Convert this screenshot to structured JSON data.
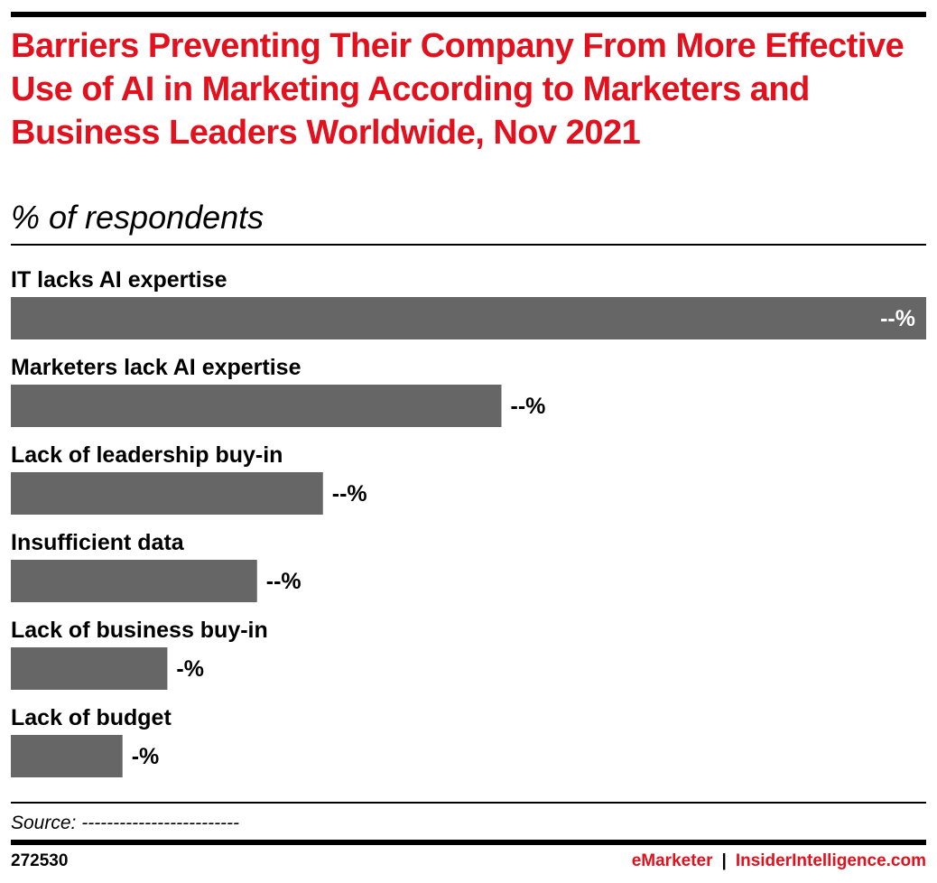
{
  "colors": {
    "accent": "#e3101d",
    "bar": "#666666",
    "text": "#000000",
    "value_inside": "#ffffff"
  },
  "chart_data": {
    "type": "bar",
    "orientation": "horizontal",
    "title": "Barriers Preventing Their Company From More Effective Use of AI in Marketing According to Marketers and Business Leaders Worldwide, Nov 2021",
    "subtitle": "% of respondents",
    "categories": [
      "IT lacks AI expertise",
      "Marketers lack AI expertise",
      "Lack of leadership buy-in",
      "Insufficient data",
      "Lack of business buy-in",
      "Lack of budget"
    ],
    "values": [
      100,
      53.6,
      34.1,
      26.9,
      17.1,
      12.2
    ],
    "value_labels": [
      "--%",
      "--%",
      "--%",
      "--%",
      "-%",
      "-%"
    ],
    "xlim": [
      0,
      100
    ],
    "grid": false,
    "legend": "none"
  },
  "footer": {
    "source": "Source: -------------------------",
    "chart_id": "272530",
    "brand_left": "eMarketer",
    "brand_sep": "|",
    "brand_right": "InsiderIntelligence.com"
  }
}
